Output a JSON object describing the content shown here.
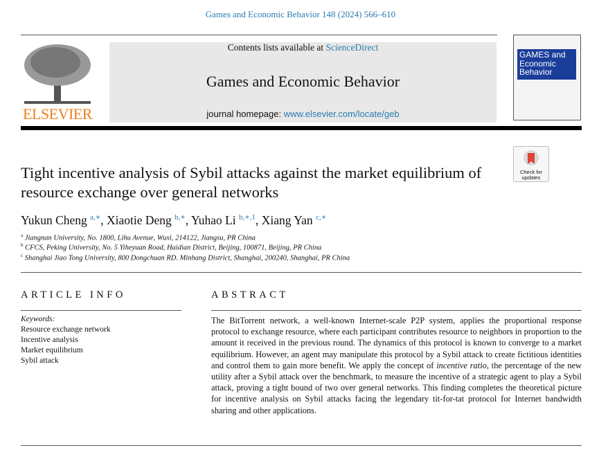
{
  "citation": "Games and Economic Behavior 148 (2024) 566–610",
  "header": {
    "contents_prefix": "Contents lists available at ",
    "contents_link": "ScienceDirect",
    "journal_title": "Games and Economic Behavior",
    "homepage_prefix": "journal homepage: ",
    "homepage_link": "www.elsevier.com/locate/geb",
    "publisher_logo": "ELSEVIER",
    "cover_title": [
      "GAMES and",
      "Economic",
      "Behavior"
    ]
  },
  "check_updates": {
    "line1": "Check for",
    "line2": "updates"
  },
  "title": "Tight incentive analysis of Sybil attacks against the market equilibrium of resource exchange over general networks",
  "authors": [
    {
      "name": "Yukun Cheng",
      "sup": "a,∗"
    },
    {
      "name": "Xiaotie Deng",
      "sup": "b,∗"
    },
    {
      "name": "Yuhao Li",
      "sup": "b,∗,1"
    },
    {
      "name": "Xiang Yan",
      "sup": "c,∗"
    }
  ],
  "affiliations": [
    {
      "mark": "a",
      "text": "Jiangnan University, No. 1800, Lihu Avenue, Wuxi, 214122, Jiangsu, PR China"
    },
    {
      "mark": "b",
      "text": "CFCS, Peking University, No. 5 Yiheyuan Road, Haidian District, Beijing, 100871, Beijing, PR China"
    },
    {
      "mark": "c",
      "text": "Shanghai Jiao Tong University, 800 Dongchuan RD. Minhang District, Shanghai, 200240, Shanghai, PR China"
    }
  ],
  "article_info": {
    "heading": "ARTICLE INFO",
    "keywords_label": "Keywords:",
    "keywords": [
      "Resource exchange network",
      "Incentive analysis",
      "Market equilibrium",
      "Sybil attack"
    ]
  },
  "abstract": {
    "heading": "ABSTRACT",
    "part1": "The BitTorrent network, a well-known Internet-scale P2P system, applies the proportional response protocol to exchange resource, where each participant contributes resource to neighbors in proportion to the amount it received in the previous round. The dynamics of this protocol is known to converge to a market equilibrium. However, an agent may manipulate this protocol by a Sybil attack to create fictitious identities and control them to gain more benefit. We apply the concept of ",
    "emph": "incentive ratio",
    "part2": ", the percentage of the new utility after a Sybil attack over the benchmark, to measure the incentive of a strategic agent to play a Sybil attack, proving a tight bound of two over general networks. This finding completes the theoretical picture for incentive analysis on Sybil attacks facing the legendary tit-for-tat protocol for Internet bandwidth sharing and other applications."
  }
}
